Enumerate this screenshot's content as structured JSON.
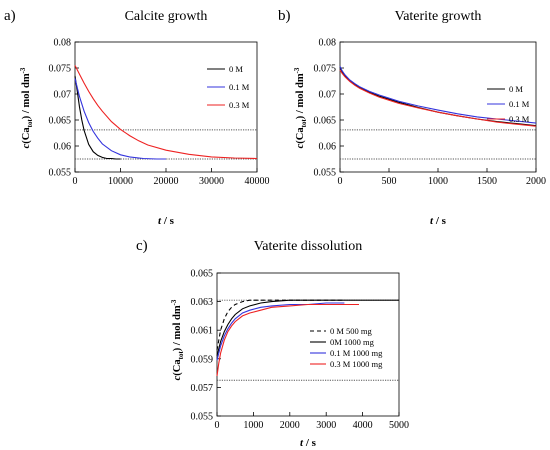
{
  "colors": {
    "black": "#000000",
    "blue": "#3333dd",
    "red": "#ee2222",
    "ref": "#555555"
  },
  "chart_data": [
    {
      "panel": "a)",
      "title": "Calcite growth",
      "type": "line",
      "xlabel": "t / s",
      "ylabel": "c(Ca_tot) / mol dm-3",
      "xlim": [
        0,
        40000
      ],
      "ylim": [
        0.055,
        0.08
      ],
      "xticks": [
        0,
        10000,
        20000,
        30000,
        40000
      ],
      "yticks": [
        0.055,
        0.06,
        0.065,
        0.07,
        0.075,
        0.08
      ],
      "xtick_labels": [
        "0",
        "10000",
        "20000",
        "30000",
        "40000"
      ],
      "ytick_labels": [
        "0.055",
        "0.06",
        "0.065",
        "0.07",
        "0.075",
        "0.08"
      ],
      "reference_lines": [
        0.0631,
        0.0575
      ],
      "legend_position": "right",
      "series": [
        {
          "name": "0 M",
          "color": "#000000",
          "dash": "",
          "x": [
            0,
            500,
            1000,
            1500,
            2000,
            3000,
            4000,
            5000,
            6000,
            7000,
            8000,
            9000,
            10000
          ],
          "y": [
            0.0735,
            0.0705,
            0.0675,
            0.065,
            0.063,
            0.0603,
            0.0589,
            0.0582,
            0.0578,
            0.0576,
            0.0576,
            0.0575,
            0.0575
          ]
        },
        {
          "name": "0.1 M",
          "color": "#3333dd",
          "dash": "",
          "x": [
            0,
            1000,
            2000,
            3000,
            4000,
            5000,
            6000,
            8000,
            10000,
            12000,
            15000,
            18000,
            20000
          ],
          "y": [
            0.073,
            0.0695,
            0.0667,
            0.0645,
            0.0628,
            0.0615,
            0.0604,
            0.0591,
            0.0583,
            0.0579,
            0.0576,
            0.0575,
            0.0575
          ]
        },
        {
          "name": "0.3 M",
          "color": "#ee2222",
          "dash": "",
          "x": [
            0,
            1000,
            2000,
            3000,
            4000,
            5000,
            6000,
            8000,
            10000,
            12000,
            14000,
            16000,
            20000,
            25000,
            30000,
            35000,
            40000
          ],
          "y": [
            0.0755,
            0.0738,
            0.0721,
            0.0705,
            0.0691,
            0.0678,
            0.0667,
            0.0647,
            0.0632,
            0.062,
            0.061,
            0.0602,
            0.0592,
            0.0584,
            0.0579,
            0.0577,
            0.0576
          ]
        }
      ]
    },
    {
      "panel": "b)",
      "title": "Vaterite growth",
      "type": "line",
      "xlabel": "t / s",
      "ylabel": "c(Ca_tot) / mol dm-3",
      "xlim": [
        0,
        2000
      ],
      "ylim": [
        0.055,
        0.08
      ],
      "xticks": [
        0,
        500,
        1000,
        1500,
        2000
      ],
      "yticks": [
        0.055,
        0.06,
        0.065,
        0.07,
        0.075,
        0.08
      ],
      "xtick_labels": [
        "0",
        "500",
        "1000",
        "1500",
        "2000"
      ],
      "ytick_labels": [
        "0.055",
        "0.06",
        "0.065",
        "0.07",
        "0.075",
        "0.08"
      ],
      "reference_lines": [
        0.0631,
        0.0575
      ],
      "legend_position": "top-right",
      "series": [
        {
          "name": "0 M",
          "color": "#000000",
          "dash": "",
          "x": [
            0,
            20,
            50,
            100,
            150,
            200,
            300,
            400,
            500,
            600,
            800,
            1000,
            1200,
            1400,
            1600,
            1800,
            2000
          ],
          "y": [
            0.0752,
            0.0743,
            0.0735,
            0.0725,
            0.0718,
            0.0712,
            0.0703,
            0.0696,
            0.069,
            0.0684,
            0.0674,
            0.0665,
            0.0658,
            0.0652,
            0.0647,
            0.0643,
            0.0639
          ]
        },
        {
          "name": "0.1 M",
          "color": "#3333dd",
          "dash": "",
          "x": [
            0,
            20,
            50,
            100,
            150,
            200,
            300,
            400,
            500,
            600,
            800,
            1000,
            1200,
            1400,
            1600,
            1800,
            2000
          ],
          "y": [
            0.0753,
            0.0745,
            0.0737,
            0.0727,
            0.072,
            0.0714,
            0.0705,
            0.0698,
            0.0692,
            0.0686,
            0.0677,
            0.0669,
            0.0662,
            0.0656,
            0.0652,
            0.0648,
            0.0644
          ]
        },
        {
          "name": "0.3 M",
          "color": "#ee2222",
          "dash": "",
          "x": [
            0,
            20,
            50,
            100,
            150,
            200,
            300,
            400,
            500,
            600,
            800,
            1000,
            1200,
            1400,
            1600,
            1800,
            2000
          ],
          "y": [
            0.0746,
            0.074,
            0.0733,
            0.0724,
            0.0717,
            0.0711,
            0.0702,
            0.0694,
            0.0688,
            0.0682,
            0.0673,
            0.0665,
            0.0658,
            0.0652,
            0.0646,
            0.0642,
            0.0638
          ]
        }
      ]
    },
    {
      "panel": "c)",
      "title": "Vaterite dissolution",
      "type": "line",
      "xlabel": "t / s",
      "ylabel": "c(Ca_tot) / mol dm-3",
      "xlim": [
        0,
        5000
      ],
      "ylim": [
        0.055,
        0.065
      ],
      "xticks": [
        0,
        1000,
        2000,
        3000,
        4000,
        5000
      ],
      "yticks": [
        0.055,
        0.057,
        0.059,
        0.061,
        0.063,
        0.065
      ],
      "xtick_labels": [
        "0",
        "1000",
        "2000",
        "3000",
        "4000",
        "5000"
      ],
      "ytick_labels": [
        "0.055",
        "0.057",
        "0.059",
        "0.061",
        "0.063",
        "0.065"
      ],
      "reference_lines": [
        0.0631,
        0.0575
      ],
      "legend_position": "bottom-right",
      "series": [
        {
          "name": "0 M 500 mg",
          "color": "#000000",
          "dash": "4,3",
          "x": [
            0,
            50,
            100,
            200,
            300,
            400,
            500,
            700,
            900,
            1200,
            1500,
            2000,
            2500,
            3000,
            3500
          ],
          "y": [
            0.0596,
            0.0603,
            0.061,
            0.0618,
            0.0623,
            0.0626,
            0.0628,
            0.063,
            0.0631,
            0.0631,
            0.0631,
            0.0631,
            0.0631,
            0.0631,
            0.0631
          ]
        },
        {
          "name": "0M 1000 mg",
          "color": "#000000",
          "dash": "",
          "x": [
            0,
            50,
            100,
            200,
            300,
            400,
            500,
            700,
            900,
            1200,
            1500,
            2000,
            2500,
            3000,
            4000,
            5000
          ],
          "y": [
            0.0592,
            0.0597,
            0.0602,
            0.0609,
            0.0614,
            0.0618,
            0.0621,
            0.0625,
            0.0627,
            0.0629,
            0.063,
            0.0631,
            0.0631,
            0.0631,
            0.0631,
            0.0631
          ]
        },
        {
          "name": "0.1 M 1000 mg",
          "color": "#3333dd",
          "dash": "",
          "x": [
            0,
            50,
            100,
            200,
            300,
            400,
            500,
            700,
            900,
            1200,
            1500,
            2000,
            2500,
            3000,
            3500
          ],
          "y": [
            0.0589,
            0.0594,
            0.0599,
            0.0606,
            0.0611,
            0.0615,
            0.0618,
            0.0622,
            0.0624,
            0.0626,
            0.0627,
            0.0628,
            0.0628,
            0.0629,
            0.0629
          ]
        },
        {
          "name": "0.3 M 1000 mg",
          "color": "#ee2222",
          "dash": "",
          "x": [
            0,
            50,
            100,
            200,
            300,
            400,
            500,
            700,
            900,
            1200,
            1500,
            2000,
            2500,
            3000,
            3500,
            3900
          ],
          "y": [
            0.0578,
            0.0587,
            0.0594,
            0.0603,
            0.0609,
            0.0613,
            0.0616,
            0.062,
            0.0622,
            0.0624,
            0.0626,
            0.0627,
            0.0628,
            0.0628,
            0.0628,
            0.0628
          ]
        }
      ]
    }
  ]
}
